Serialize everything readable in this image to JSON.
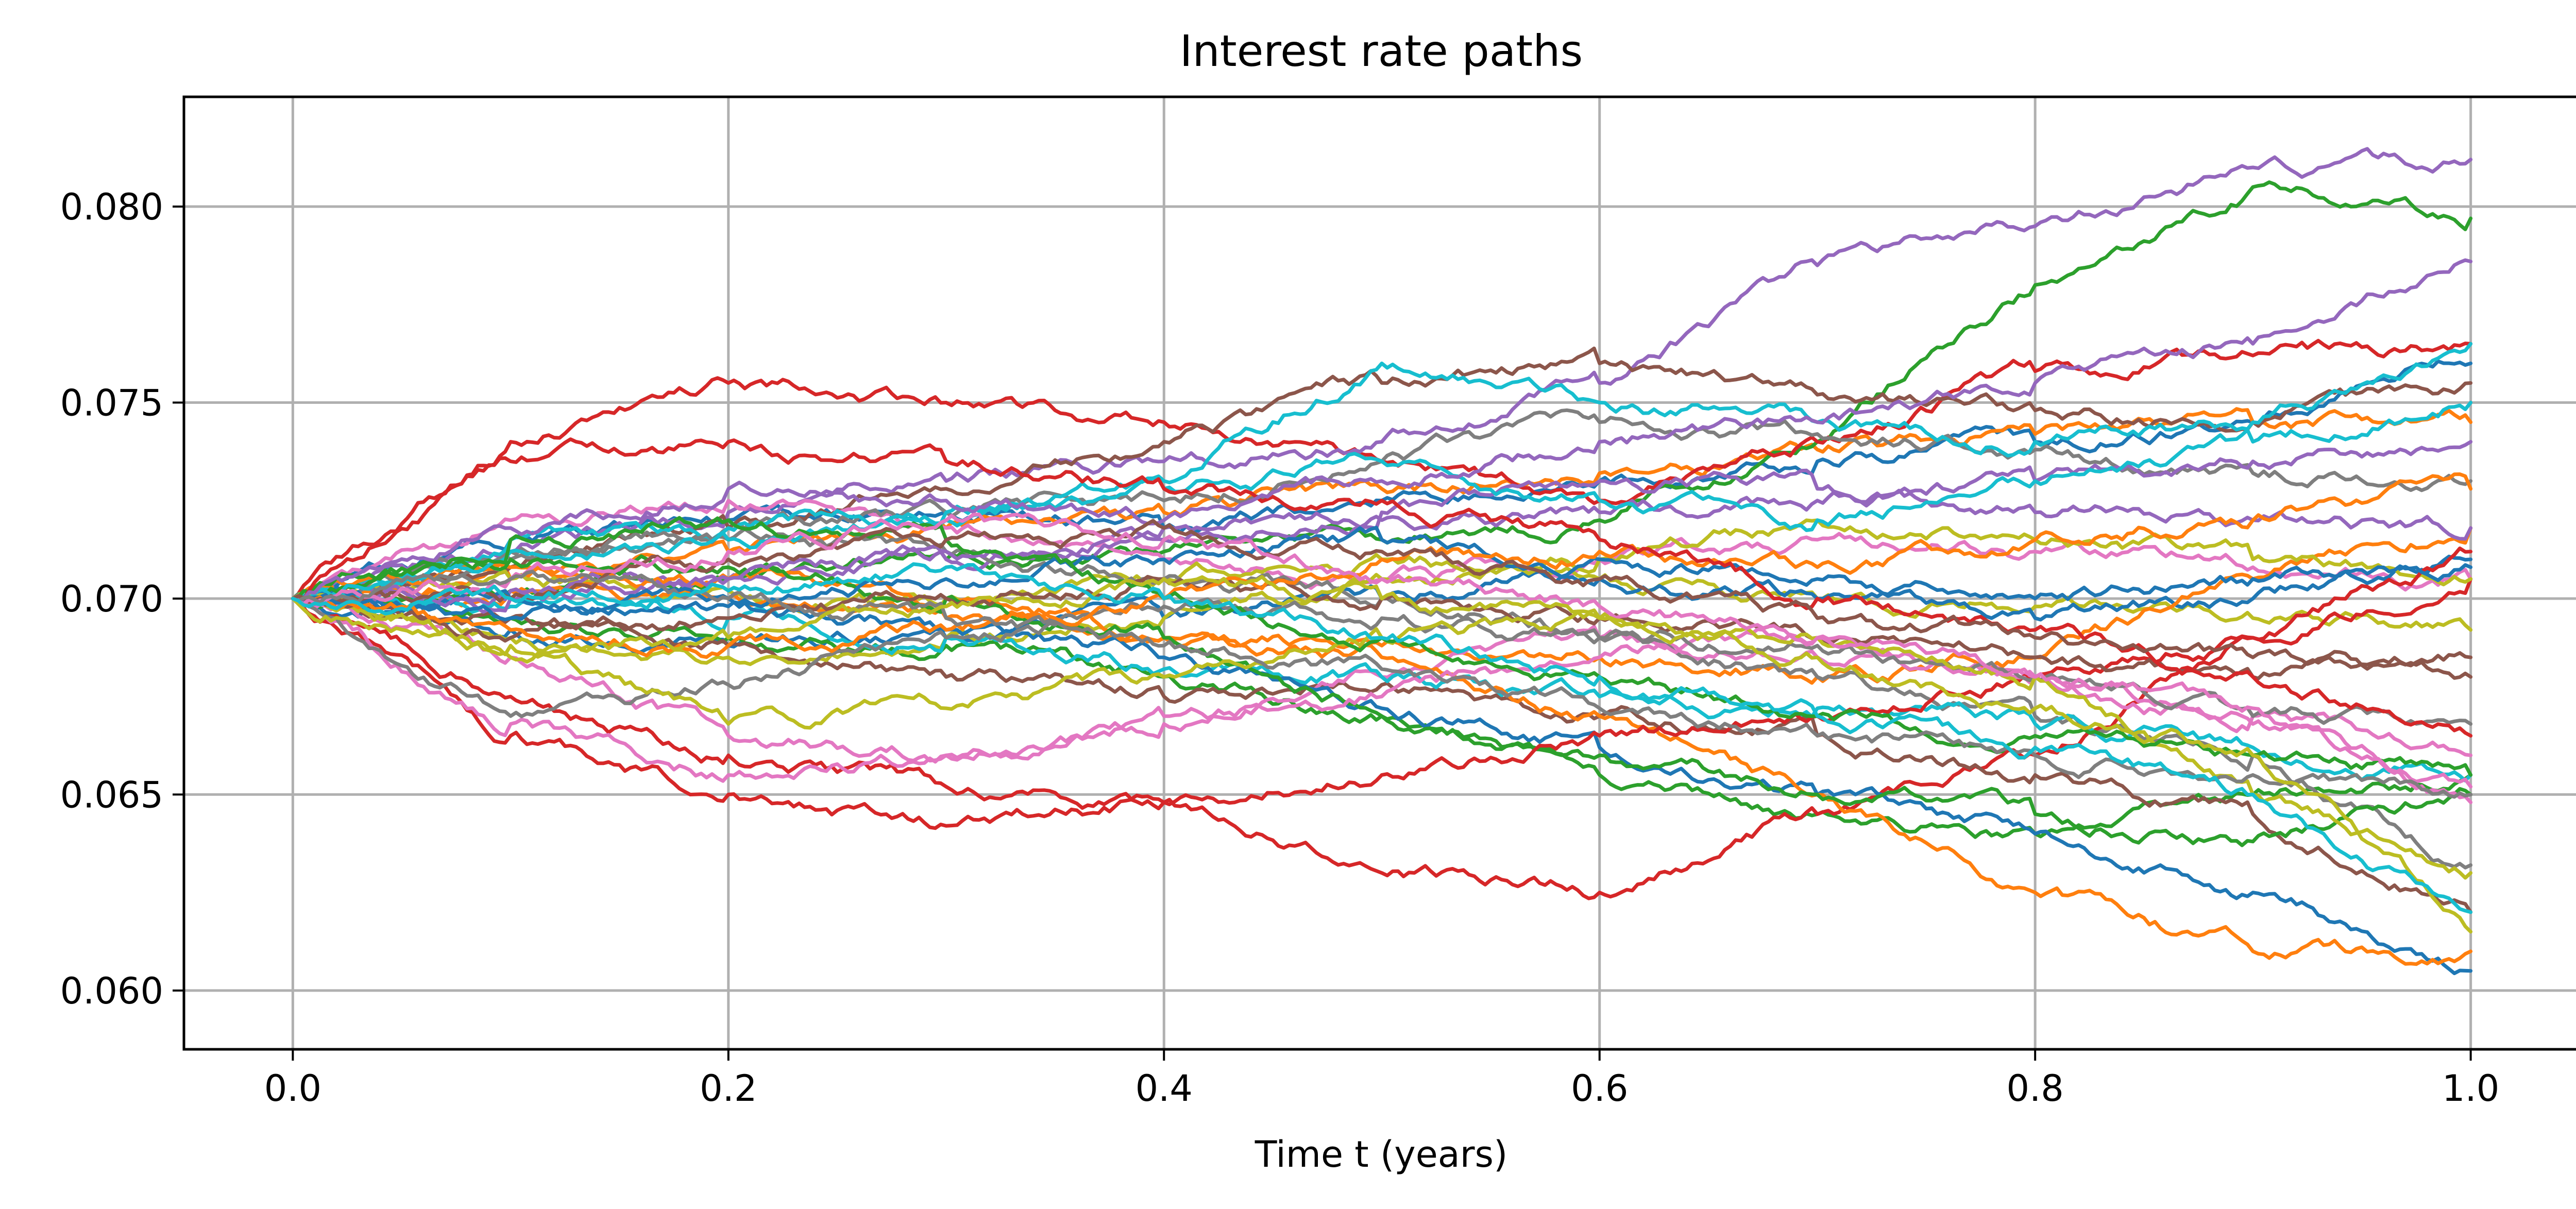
{
  "chart_data": {
    "type": "line",
    "title": "Interest rate paths",
    "xlabel": "Time t (years)",
    "ylabel": "",
    "xlim": [
      -0.05,
      1.05
    ],
    "ylim": [
      0.0585,
      0.0828
    ],
    "x_ticks": [
      0.0,
      0.2,
      0.4,
      0.6,
      0.8,
      1.0
    ],
    "x_tick_labels": [
      "0.0",
      "0.2",
      "0.4",
      "0.6",
      "0.8",
      "1.0"
    ],
    "y_ticks": [
      0.06,
      0.065,
      0.07,
      0.075,
      0.08
    ],
    "y_tick_labels": [
      "0.060",
      "0.065",
      "0.070",
      "0.075",
      "0.080"
    ],
    "grid": true,
    "legend": "none",
    "x": [
      0.0,
      0.1,
      0.2,
      0.3,
      0.4,
      0.5,
      0.6,
      0.7,
      0.8,
      0.9,
      1.0
    ],
    "start_value": 0.07,
    "palette": [
      "#1f77b4",
      "#ff7f0e",
      "#2ca02c",
      "#d62728",
      "#9467bd",
      "#8c564b",
      "#e377c2",
      "#7f7f7f",
      "#bcbd22",
      "#17becf"
    ],
    "series": [
      {
        "values": [
          0.07,
          0.0715,
          0.072,
          0.0722,
          0.0718,
          0.0725,
          0.073,
          0.0735,
          0.074,
          0.0745,
          0.076
        ]
      },
      {
        "values": [
          0.07,
          0.0705,
          0.0712,
          0.0718,
          0.0722,
          0.0728,
          0.0732,
          0.0738,
          0.0742,
          0.0745,
          0.0745
        ]
      },
      {
        "values": [
          0.07,
          0.0702,
          0.0705,
          0.071,
          0.0712,
          0.0715,
          0.072,
          0.074,
          0.078,
          0.0805,
          0.0797
        ]
      },
      {
        "values": [
          0.07,
          0.074,
          0.0755,
          0.075,
          0.0745,
          0.0735,
          0.0725,
          0.074,
          0.0758,
          0.0762,
          0.0765
        ]
      },
      {
        "values": [
          0.07,
          0.0712,
          0.0722,
          0.073,
          0.0735,
          0.074,
          0.0755,
          0.0785,
          0.0795,
          0.081,
          0.0812
        ]
      },
      {
        "values": [
          0.07,
          0.0708,
          0.0718,
          0.0728,
          0.074,
          0.0755,
          0.076,
          0.0752,
          0.0748,
          0.0745,
          0.0755
        ]
      },
      {
        "values": [
          0.07,
          0.072,
          0.0725,
          0.0718,
          0.071,
          0.0705,
          0.071,
          0.0715,
          0.0712,
          0.0708,
          0.0705
        ]
      },
      {
        "values": [
          0.07,
          0.0712,
          0.0718,
          0.0722,
          0.0725,
          0.0735,
          0.0745,
          0.0742,
          0.0738,
          0.0732,
          0.073
        ]
      },
      {
        "values": [
          0.07,
          0.0705,
          0.0702,
          0.07,
          0.0705,
          0.071,
          0.0705,
          0.07,
          0.0698,
          0.0695,
          0.0692
        ]
      },
      {
        "values": [
          0.07,
          0.0715,
          0.0718,
          0.0722,
          0.073,
          0.076,
          0.075,
          0.0745,
          0.074,
          0.0745,
          0.0765
        ]
      },
      {
        "values": [
          0.07,
          0.0692,
          0.0688,
          0.069,
          0.0695,
          0.07,
          0.0705,
          0.07,
          0.0695,
          0.07,
          0.071
        ]
      },
      {
        "values": [
          0.07,
          0.0702,
          0.07,
          0.0695,
          0.069,
          0.0688,
          0.0685,
          0.068,
          0.0685,
          0.0705,
          0.0718
        ]
      },
      {
        "values": [
          0.07,
          0.0695,
          0.069,
          0.0688,
          0.068,
          0.067,
          0.0655,
          0.0645,
          0.064,
          0.065,
          0.0655
        ]
      },
      {
        "values": [
          0.07,
          0.0665,
          0.065,
          0.0642,
          0.0648,
          0.063,
          0.0625,
          0.0645,
          0.066,
          0.069,
          0.0705
        ]
      },
      {
        "values": [
          0.07,
          0.0702,
          0.0705,
          0.071,
          0.0715,
          0.072,
          0.0722,
          0.0725,
          0.073,
          0.0735,
          0.074
        ]
      },
      {
        "values": [
          0.07,
          0.0695,
          0.0688,
          0.068,
          0.0675,
          0.0678,
          0.067,
          0.0665,
          0.0655,
          0.0645,
          0.062
        ]
      },
      {
        "values": [
          0.07,
          0.0685,
          0.0665,
          0.066,
          0.0668,
          0.068,
          0.069,
          0.0685,
          0.068,
          0.067,
          0.066
        ]
      },
      {
        "values": [
          0.07,
          0.071,
          0.0715,
          0.0712,
          0.0705,
          0.07,
          0.069,
          0.068,
          0.067,
          0.066,
          0.0632
        ]
      },
      {
        "values": [
          0.07,
          0.069,
          0.0685,
          0.069,
          0.0695,
          0.0705,
          0.071,
          0.072,
          0.0715,
          0.071,
          0.0705
        ]
      },
      {
        "values": [
          0.07,
          0.0698,
          0.0695,
          0.069,
          0.0682,
          0.068,
          0.0675,
          0.0672,
          0.0668,
          0.0662,
          0.0655
        ]
      },
      {
        "values": [
          0.07,
          0.07,
          0.0698,
          0.0692,
          0.0685,
          0.0672,
          0.0662,
          0.065,
          0.064,
          0.0625,
          0.0605
        ]
      },
      {
        "values": [
          0.07,
          0.0708,
          0.0705,
          0.0698,
          0.069,
          0.0685,
          0.067,
          0.065,
          0.0625,
          0.061,
          0.061
        ]
      },
      {
        "values": [
          0.07,
          0.071,
          0.0708,
          0.07,
          0.069,
          0.067,
          0.066,
          0.065,
          0.0645,
          0.0638,
          0.065
        ]
      },
      {
        "values": [
          0.07,
          0.0675,
          0.066,
          0.0652,
          0.0648,
          0.0655,
          0.0665,
          0.067,
          0.068,
          0.069,
          0.0712
        ]
      },
      {
        "values": [
          0.07,
          0.07,
          0.0705,
          0.0712,
          0.0718,
          0.0722,
          0.073,
          0.0728,
          0.0722,
          0.072,
          0.0718
        ]
      },
      {
        "values": [
          0.07,
          0.069,
          0.0695,
          0.07,
          0.0705,
          0.07,
          0.0695,
          0.069,
          0.0685,
          0.068,
          0.0685
        ]
      },
      {
        "values": [
          0.07,
          0.0668,
          0.0655,
          0.066,
          0.067,
          0.0675,
          0.0685,
          0.069,
          0.068,
          0.0668,
          0.0652
        ]
      },
      {
        "values": [
          0.07,
          0.067,
          0.0678,
          0.069,
          0.0698,
          0.0695,
          0.069,
          0.0688,
          0.068,
          0.067,
          0.0668
        ]
      },
      {
        "values": [
          0.07,
          0.0688,
          0.0668,
          0.0672,
          0.068,
          0.069,
          0.0695,
          0.069,
          0.068,
          0.065,
          0.063
        ]
      },
      {
        "values": [
          0.07,
          0.0712,
          0.0715,
          0.072,
          0.0728,
          0.0735,
          0.0725,
          0.072,
          0.073,
          0.074,
          0.075
        ]
      },
      {
        "values": [
          0.07,
          0.0695,
          0.07,
          0.0705,
          0.071,
          0.0715,
          0.071,
          0.0705,
          0.07,
          0.0705,
          0.0708
        ]
      },
      {
        "values": [
          0.07,
          0.0692,
          0.0688,
          0.0692,
          0.07,
          0.071,
          0.0712,
          0.0708,
          0.0715,
          0.072,
          0.0728
        ]
      },
      {
        "values": [
          0.07,
          0.0715,
          0.072,
          0.0715,
          0.07,
          0.069,
          0.068,
          0.067,
          0.0665,
          0.066,
          0.0655
        ]
      },
      {
        "values": [
          0.07,
          0.0735,
          0.074,
          0.0735,
          0.0728,
          0.0725,
          0.0715,
          0.07,
          0.0692,
          0.068,
          0.0665
        ]
      },
      {
        "values": [
          0.07,
          0.0718,
          0.0728,
          0.0725,
          0.072,
          0.073,
          0.074,
          0.0745,
          0.0755,
          0.0765,
          0.0786
        ]
      },
      {
        "values": [
          0.07,
          0.07,
          0.071,
          0.0715,
          0.0718,
          0.0712,
          0.0705,
          0.0695,
          0.069,
          0.0685,
          0.068
        ]
      },
      {
        "values": [
          0.07,
          0.0705,
          0.0712,
          0.072,
          0.0715,
          0.0705,
          0.0698,
          0.069,
          0.068,
          0.0672,
          0.0648
        ]
      },
      {
        "values": [
          0.07,
          0.0705,
          0.07,
          0.0695,
          0.0688,
          0.0682,
          0.0672,
          0.0665,
          0.066,
          0.0655,
          0.065
        ]
      },
      {
        "values": [
          0.07,
          0.0685,
          0.069,
          0.0698,
          0.0705,
          0.07,
          0.0695,
          0.0685,
          0.0672,
          0.066,
          0.0615
        ]
      },
      {
        "values": [
          0.07,
          0.07,
          0.0702,
          0.0708,
          0.07,
          0.069,
          0.068,
          0.067,
          0.0662,
          0.065,
          0.062
        ]
      }
    ]
  }
}
